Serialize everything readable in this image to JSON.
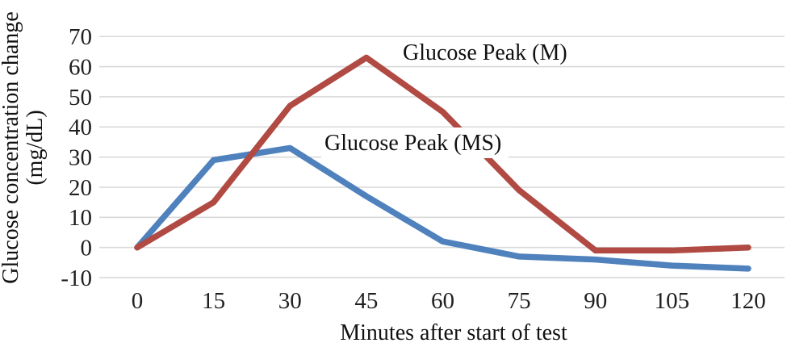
{
  "chart_data": {
    "type": "line",
    "title": "",
    "xlabel": "Minutes after start of test",
    "ylabel": "Glucose concentration change (mg/dL)",
    "ylabel_line1": "Glucose concentration change",
    "ylabel_line2": "(mg/dL)",
    "x": [
      0,
      15,
      30,
      45,
      60,
      75,
      90,
      105,
      120
    ],
    "xtick_labels": [
      "0",
      "15",
      "30",
      "45",
      "60",
      "75",
      "90",
      "105",
      "120"
    ],
    "ytick_labels": [
      "70",
      "60",
      "50",
      "40",
      "30",
      "20",
      "10",
      "0",
      "-10"
    ],
    "ytick_values": [
      70,
      60,
      50,
      40,
      30,
      20,
      10,
      0,
      -10
    ],
    "xlim": [
      0,
      120
    ],
    "ylim": [
      -10,
      70
    ],
    "grid": true,
    "legend_position": "inline-annotations",
    "series": [
      {
        "name": "Glucose Peak (M)",
        "color": "#b04a43",
        "values": [
          0,
          15,
          47,
          63,
          45,
          19,
          -1,
          -1,
          0
        ]
      },
      {
        "name": "Glucose Peak (MS)",
        "color": "#4f81bd",
        "values": [
          0,
          29,
          33,
          17,
          2,
          -3,
          -4,
          -6,
          -7
        ]
      }
    ],
    "colors": {
      "gridline": "#d9d9d9",
      "tick_text": "#1f1f1f",
      "axis_text": "#111111"
    }
  }
}
